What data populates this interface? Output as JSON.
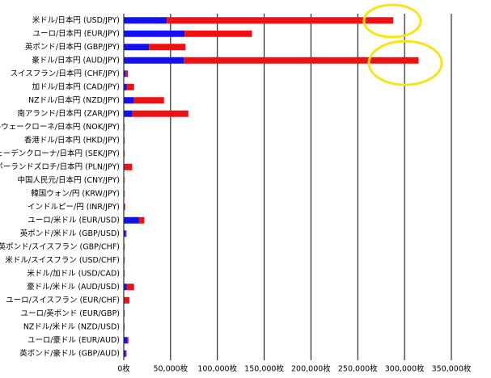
{
  "chart_data": {
    "type": "stacked-bar",
    "orientation": "horizontal",
    "categories": [
      "米ドル/日本円 (USD/JPY)",
      "ユーロ/日本円 (EUR/JPY)",
      "英ポンド/日本円 (GBP/JPY)",
      "豪ドル/日本円 (AUD/JPY)",
      "スイスフラン/日本円 (CHF/JPY)",
      "加ドル/日本円 (CAD/JPY)",
      "NZドル/日本円 (NZD/JPY)",
      "南アランド/日本円 (ZAR/JPY)",
      "ノルウェークローネ/日本円 (NOK/JPY)",
      "香港ドル/日本円 (HKD/JPY)",
      "スェーデンクローナ/日本円 (SEK/JPY)",
      "ポーランドズロチ/日本円 (PLN/JPY)",
      "中国人民元/日本円 (CNY/JPY)",
      "韓国ウォン/円 (KRW/JPY)",
      "インドルピー/円 (INR/JPY)",
      "ユーロ/米ドル (EUR/USD)",
      "英ポンド/米ドル (GBP/USD)",
      "英ポンド/スイスフラン (GBP/CHF)",
      "米ドル/スイスフラン (USD/CHF)",
      "米ドル/加ドル (USD/CAD)",
      "豪ドル/米ドル (AUD/USD)",
      "ユーロ/スイスフラン (EUR/CHF)",
      "ユーロ/英ポンド (EUR/GBP)",
      "NZドル/米ドル (NZD/USD)",
      "ユーロ/豪ドル (EUR/AUD)",
      "英ポンド/豪ドル (GBP/AUD)"
    ],
    "series": [
      {
        "color": "#1010f0",
        "values": [
          46000,
          65000,
          27000,
          64000,
          2000,
          3000,
          11000,
          9000,
          500,
          500,
          500,
          1000,
          500,
          500,
          1000,
          16000,
          2000,
          500,
          500,
          500,
          3000,
          1000,
          500,
          500,
          4000,
          2000
        ]
      },
      {
        "color": "#ee1111",
        "values": [
          242000,
          72000,
          39000,
          251000,
          2500,
          8000,
          32000,
          60000,
          500,
          500,
          500,
          8000,
          500,
          500,
          500,
          6000,
          1000,
          500,
          500,
          500,
          8000,
          5000,
          500,
          500,
          1000,
          1000
        ]
      }
    ],
    "xlim": [
      0,
      350000
    ],
    "xticks": [
      {
        "value": 0,
        "label": "0枚"
      },
      {
        "value": 50000,
        "label": "50,000枚"
      },
      {
        "value": 100000,
        "label": "100,000枚"
      },
      {
        "value": 150000,
        "label": "150,000枚"
      },
      {
        "value": 200000,
        "label": "200,000枚"
      },
      {
        "value": 250000,
        "label": "250,000枚"
      },
      {
        "value": 300000,
        "label": "300,000枚"
      },
      {
        "value": 350000,
        "label": "350,000枚"
      }
    ],
    "grid": true
  }
}
